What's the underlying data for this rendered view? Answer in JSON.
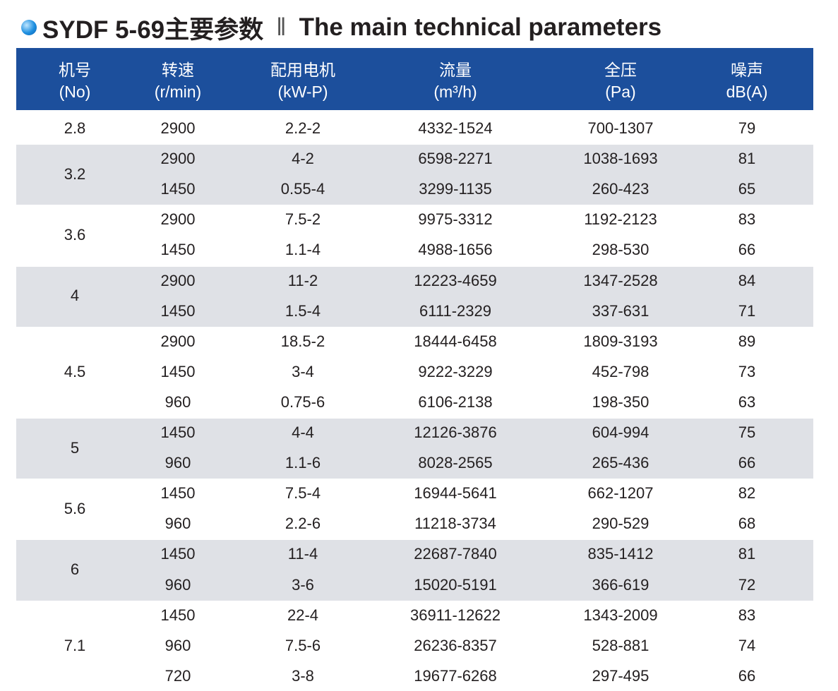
{
  "title": {
    "model": "SYDF 5-69主要参数",
    "separator": "‖",
    "english": "The main technical parameters"
  },
  "table": {
    "columns": [
      {
        "name": "机号",
        "unit": "(No)"
      },
      {
        "name": "转速",
        "unit": "(r/min)"
      },
      {
        "name": "配用电机",
        "unit": "(kW-P)"
      },
      {
        "name": "流量",
        "unit": "(m³/h)"
      },
      {
        "name": "全压",
        "unit": "(Pa)"
      },
      {
        "name": "噪声",
        "unit": "dB(A)"
      }
    ],
    "groups": [
      {
        "no": "2.8",
        "rows": [
          [
            "2900",
            "2.2-2",
            "4332-1524",
            "700-1307",
            "79"
          ]
        ]
      },
      {
        "no": "3.2",
        "rows": [
          [
            "2900",
            "4-2",
            "6598-2271",
            "1038-1693",
            "81"
          ],
          [
            "1450",
            "0.55-4",
            "3299-1135",
            "260-423",
            "65"
          ]
        ]
      },
      {
        "no": "3.6",
        "rows": [
          [
            "2900",
            "7.5-2",
            "9975-3312",
            "1192-2123",
            "83"
          ],
          [
            "1450",
            "1.1-4",
            "4988-1656",
            "298-530",
            "66"
          ]
        ]
      },
      {
        "no": "4",
        "rows": [
          [
            "2900",
            "11-2",
            "12223-4659",
            "1347-2528",
            "84"
          ],
          [
            "1450",
            "1.5-4",
            "6111-2329",
            "337-631",
            "71"
          ]
        ]
      },
      {
        "no": "4.5",
        "rows": [
          [
            "2900",
            "18.5-2",
            "18444-6458",
            "1809-3193",
            "89"
          ],
          [
            "1450",
            "3-4",
            "9222-3229",
            "452-798",
            "73"
          ],
          [
            "960",
            "0.75-6",
            "6106-2138",
            "198-350",
            "63"
          ]
        ]
      },
      {
        "no": "5",
        "rows": [
          [
            "1450",
            "4-4",
            "12126-3876",
            "604-994",
            "75"
          ],
          [
            "960",
            "1.1-6",
            "8028-2565",
            "265-436",
            "66"
          ]
        ]
      },
      {
        "no": "5.6",
        "rows": [
          [
            "1450",
            "7.5-4",
            "16944-5641",
            "662-1207",
            "82"
          ],
          [
            "960",
            "2.2-6",
            "11218-3734",
            "290-529",
            "68"
          ]
        ]
      },
      {
        "no": "6",
        "rows": [
          [
            "1450",
            "11-4",
            "22687-7840",
            "835-1412",
            "81"
          ],
          [
            "960",
            "3-6",
            "15020-5191",
            "366-619",
            "72"
          ]
        ]
      },
      {
        "no": "7.1",
        "rows": [
          [
            "1450",
            "22-4",
            "36911-12622",
            "1343-2009",
            "83"
          ],
          [
            "960",
            "7.5-6",
            "26236-8357",
            "528-881",
            "74"
          ],
          [
            "720",
            "3-8",
            "19677-6268",
            "297-495",
            "66"
          ]
        ]
      }
    ]
  }
}
